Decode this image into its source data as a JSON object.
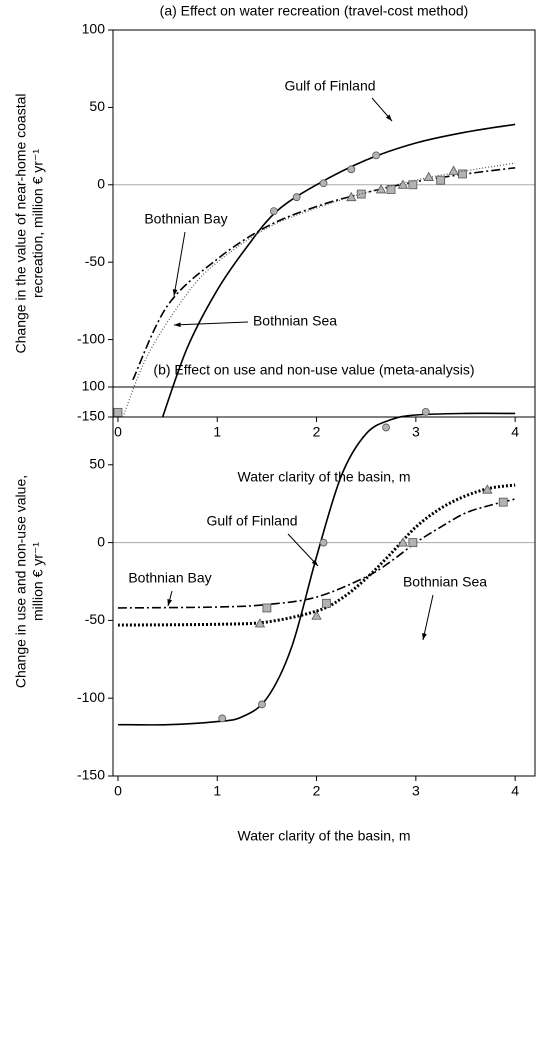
{
  "chart_data": [
    {
      "type": "line",
      "title": "(a) Effect on water recreation (travel-cost method)",
      "xlabel": "Water clarity of the basin, m",
      "ylabel": [
        "Change in the value of near-home coastal",
        "recreation, million € yr⁻¹"
      ],
      "xlim": [
        -0.05,
        4.2
      ],
      "ylim": [
        -150,
        100
      ],
      "xticks": [
        0,
        1,
        2,
        3,
        4
      ],
      "yticks": [
        -150,
        -100,
        -50,
        0,
        50,
        100
      ],
      "series": [
        {
          "name": "Gulf of Finland",
          "color": "#000000",
          "line_style": "solid",
          "marker": "circle",
          "curve_x": [
            0.45,
            0.7,
            1.0,
            1.3,
            1.6,
            2.0,
            2.5,
            3.0,
            3.5,
            4.0
          ],
          "curve_values": [
            -150,
            -105,
            -68,
            -40,
            -17,
            0,
            16,
            27,
            34,
            39
          ],
          "x": [
            1.57,
            1.8,
            2.07,
            2.35,
            2.6
          ],
          "values": [
            -17,
            -8,
            1,
            10,
            19
          ]
        },
        {
          "name": "Bothnian Bay",
          "color": "#000000",
          "line_style": "dashdot",
          "marker": "square",
          "curve_x": [
            0.15,
            0.5,
            1.0,
            1.5,
            2.0,
            2.5,
            3.0,
            3.5,
            4.0
          ],
          "curve_values": [
            -126,
            -78,
            -48,
            -27,
            -14,
            -5,
            2,
            7,
            11
          ],
          "x": [
            0,
            2.45,
            2.75,
            2.97,
            3.25,
            3.47
          ],
          "values": [
            -147,
            -6,
            -3,
            0,
            3,
            7
          ]
        },
        {
          "name": "Bothnian Sea",
          "color": "#555555",
          "line_style": "finedot",
          "marker": "triangle",
          "curve_x": [
            0.05,
            0.3,
            0.7,
            1.0,
            1.5,
            2.0,
            2.5,
            3.0,
            3.5,
            4.0
          ],
          "curve_values": [
            -150,
            -110,
            -70,
            -50,
            -28,
            -15,
            -5,
            3,
            9,
            14
          ],
          "x": [
            2.35,
            2.65,
            2.87,
            3.13,
            3.38
          ],
          "values": [
            -8,
            -3,
            0,
            5,
            9
          ]
        }
      ]
    },
    {
      "type": "line",
      "title": "(b) Effect on use and non-use value (meta-analysis)",
      "xlabel": "Water clarity of the basin, m",
      "ylabel": [
        "Change in use and non-use value,",
        "million € yr⁻¹"
      ],
      "xlim": [
        -0.05,
        4.2
      ],
      "ylim": [
        -150,
        100
      ],
      "xticks": [
        0,
        1,
        2,
        3,
        4
      ],
      "yticks": [
        -150,
        -100,
        -50,
        0,
        50,
        100
      ],
      "series": [
        {
          "name": "Gulf of Finland",
          "color": "#000000",
          "line_style": "solid",
          "marker": "circle",
          "curve_x": [
            0,
            0.5,
            1,
            1.25,
            1.5,
            1.75,
            2,
            2.25,
            2.5,
            2.75,
            3,
            3.5,
            4
          ],
          "curve_values": [
            -117,
            -117,
            -115,
            -112,
            -100,
            -67,
            -9,
            43,
            70,
            79,
            82,
            83,
            83
          ],
          "x": [
            1.05,
            1.45,
            2.07,
            2.7,
            3.1
          ],
          "values": [
            -113,
            -104,
            0,
            74,
            84
          ]
        },
        {
          "name": "Bothnian Sea",
          "color": "#000000",
          "line_style": "dotted",
          "marker": "triangle",
          "curve_x": [
            0,
            1,
            1.5,
            2,
            2.25,
            2.5,
            2.75,
            3,
            3.25,
            3.5,
            3.75,
            4
          ],
          "curve_values": [
            -53,
            -52.5,
            -51,
            -44,
            -36,
            -23,
            -7,
            10,
            22,
            30,
            35,
            37
          ],
          "x": [
            1.43,
            2.0,
            2.87,
            3.72
          ],
          "values": [
            -52,
            -47,
            0,
            34
          ]
        },
        {
          "name": "Bothnian Bay",
          "color": "#000000",
          "line_style": "dashdot",
          "marker": "square",
          "curve_x": [
            0,
            1,
            1.5,
            2,
            2.5,
            2.75,
            3,
            3.25,
            3.5,
            3.75,
            4
          ],
          "curve_values": [
            -42,
            -41.4,
            -39.8,
            -35,
            -22,
            -12,
            0,
            10,
            19,
            24,
            28
          ],
          "x": [
            1.5,
            2.1,
            2.97,
            3.88
          ],
          "values": [
            -42,
            -39,
            0,
            26
          ]
        }
      ]
    }
  ]
}
